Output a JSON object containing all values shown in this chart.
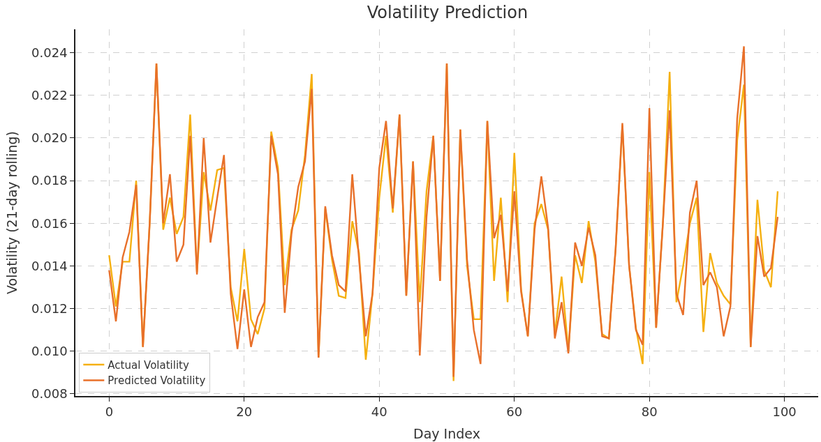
{
  "chart_data": {
    "type": "line",
    "title": "Volatility Prediction",
    "xlabel": "Day Index",
    "ylabel": "Volatility (21-day rolling)",
    "x": [
      0,
      1,
      2,
      3,
      4,
      5,
      6,
      7,
      8,
      9,
      10,
      11,
      12,
      13,
      14,
      15,
      16,
      17,
      18,
      19,
      20,
      21,
      22,
      23,
      24,
      25,
      26,
      27,
      28,
      29,
      30,
      31,
      32,
      33,
      34,
      35,
      36,
      37,
      38,
      39,
      40,
      41,
      42,
      43,
      44,
      45,
      46,
      47,
      48,
      49,
      50,
      51,
      52,
      53,
      54,
      55,
      56,
      57,
      58,
      59,
      60,
      61,
      62,
      63,
      64,
      65,
      66,
      67,
      68,
      69,
      70,
      71,
      72,
      73,
      74,
      75,
      76,
      77,
      78,
      79,
      80,
      81,
      82,
      83,
      84,
      85,
      86,
      87,
      88,
      89,
      90,
      91,
      92,
      93,
      94,
      95,
      96,
      97,
      98,
      99
    ],
    "series": [
      {
        "name": "Actual Volatility",
        "color": "#f5b010",
        "values": [
          0.0145,
          0.0121,
          0.0142,
          0.0142,
          0.018,
          0.0102,
          0.016,
          0.0235,
          0.0157,
          0.0172,
          0.0155,
          0.0163,
          0.0211,
          0.0137,
          0.0184,
          0.0166,
          0.0185,
          0.0186,
          0.013,
          0.0114,
          0.0148,
          0.0115,
          0.0108,
          0.012,
          0.0203,
          0.0186,
          0.0131,
          0.0157,
          0.0166,
          0.0192,
          0.023,
          0.0097,
          0.0167,
          0.0143,
          0.0126,
          0.0125,
          0.0161,
          0.0146,
          0.0096,
          0.0127,
          0.0172,
          0.0201,
          0.0165,
          0.0211,
          0.0126,
          0.0189,
          0.0123,
          0.0175,
          0.0201,
          0.0133,
          0.0235,
          0.0086,
          0.0204,
          0.014,
          0.0115,
          0.0115,
          0.0208,
          0.0133,
          0.0172,
          0.0123,
          0.0193,
          0.0129,
          0.0107,
          0.016,
          0.0169,
          0.0157,
          0.0108,
          0.0135,
          0.01,
          0.0145,
          0.0132,
          0.0161,
          0.0142,
          0.0108,
          0.0106,
          0.0148,
          0.0206,
          0.014,
          0.0111,
          0.0094,
          0.0184,
          0.0111,
          0.016,
          0.0231,
          0.0123,
          0.014,
          0.016,
          0.0172,
          0.0109,
          0.0146,
          0.0132,
          0.0126,
          0.0122,
          0.0199,
          0.0225,
          0.0102,
          0.0171,
          0.0138,
          0.013,
          0.0175
        ]
      },
      {
        "name": "Predicted Volatility",
        "color": "#e8702a",
        "values": [
          0.0138,
          0.0114,
          0.0144,
          0.0156,
          0.0178,
          0.0102,
          0.016,
          0.0235,
          0.016,
          0.0183,
          0.0142,
          0.015,
          0.0201,
          0.0136,
          0.02,
          0.0151,
          0.0172,
          0.0192,
          0.0127,
          0.0101,
          0.0129,
          0.0102,
          0.0116,
          0.0123,
          0.0201,
          0.0183,
          0.0118,
          0.0155,
          0.0177,
          0.0189,
          0.0223,
          0.0097,
          0.0168,
          0.0145,
          0.0131,
          0.0128,
          0.0183,
          0.0143,
          0.0107,
          0.0127,
          0.0186,
          0.0208,
          0.0167,
          0.0211,
          0.0126,
          0.0189,
          0.0098,
          0.0163,
          0.0201,
          0.0133,
          0.0235,
          0.0088,
          0.0204,
          0.0143,
          0.011,
          0.0094,
          0.0208,
          0.0153,
          0.0164,
          0.0128,
          0.0175,
          0.0128,
          0.0107,
          0.0157,
          0.0182,
          0.0158,
          0.0106,
          0.0123,
          0.0099,
          0.0151,
          0.014,
          0.0158,
          0.0145,
          0.0107,
          0.0106,
          0.0148,
          0.0207,
          0.014,
          0.011,
          0.0103,
          0.0214,
          0.0111,
          0.016,
          0.0213,
          0.0127,
          0.0117,
          0.0165,
          0.018,
          0.0131,
          0.0137,
          0.013,
          0.0107,
          0.0121,
          0.0209,
          0.0243,
          0.0102,
          0.0154,
          0.0135,
          0.0139,
          0.0163
        ]
      }
    ],
    "xlim": [
      -5,
      105
    ],
    "xticks": [
      0,
      20,
      40,
      60,
      80,
      100
    ],
    "ylim": [
      0.0079,
      0.0251
    ],
    "yticks": [
      {
        "value": 0.008,
        "label": "0.008"
      },
      {
        "value": 0.01,
        "label": "0.010"
      },
      {
        "value": 0.012,
        "label": "0.012"
      },
      {
        "value": 0.014,
        "label": "0.014"
      },
      {
        "value": 0.016,
        "label": "0.016"
      },
      {
        "value": 0.018,
        "label": "0.018"
      },
      {
        "value": 0.02,
        "label": "0.020"
      },
      {
        "value": 0.022,
        "label": "0.022"
      },
      {
        "value": 0.024,
        "label": "0.024"
      }
    ],
    "grid": true,
    "legend": "bottom left",
    "marker": "none",
    "line_style": "solid"
  }
}
